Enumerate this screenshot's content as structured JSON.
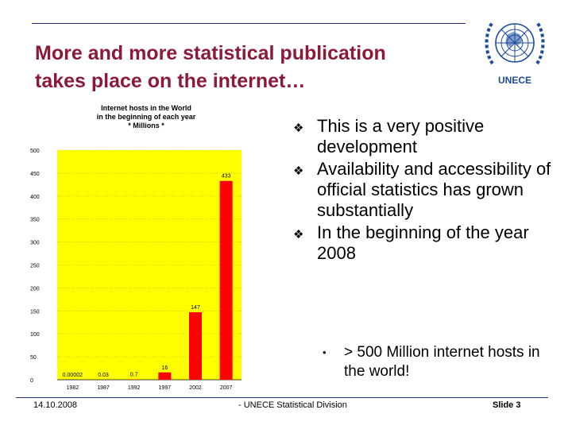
{
  "slide": {
    "title_lines": [
      "More and more statistical publication",
      "takes place on the internet…"
    ],
    "logo_text": "UNECE",
    "bullets": [
      "This is a very positive development",
      "Availability and accessibility of official statistics has grown substantially",
      "In the beginning of the year 2008"
    ],
    "sub_bullets": [
      "> 500 Million internet hosts in the world!"
    ],
    "bullet_marker": "❖",
    "sub_bullet_marker": "•"
  },
  "footer": {
    "date": "14.10.2008",
    "center": "- UNECE Statistical Division",
    "slide": "Slide 3"
  },
  "colors": {
    "title": "#8b1a3a",
    "chart_background": "#ffff00",
    "bar": "#ff0000",
    "logo": "#1c4b9c"
  },
  "chart_data": {
    "type": "bar",
    "title_lines": [
      "Internet hosts in the World",
      "in the beginning of each year",
      "* Millions *"
    ],
    "categories": [
      "1982",
      "1987",
      "1992",
      "1997",
      "2002",
      "2007"
    ],
    "values": [
      2e-05,
      0.03,
      0.7,
      16,
      147,
      433
    ],
    "value_labels": [
      "0.00002",
      "0.03",
      "0.7",
      "16",
      "147",
      "433"
    ],
    "yticks": [
      "0",
      "50",
      "100",
      "150",
      "200",
      "250",
      "300",
      "350",
      "400",
      "450",
      "500"
    ],
    "ylim": [
      0,
      500
    ],
    "xlabel": "",
    "ylabel": ""
  }
}
